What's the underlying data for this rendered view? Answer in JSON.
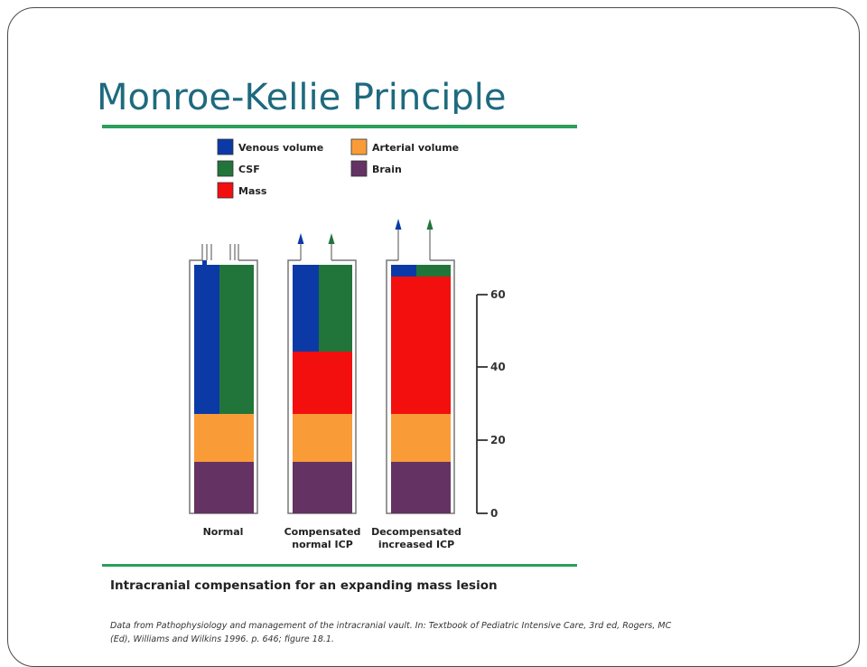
{
  "slide": {
    "title": "Monroe-Kellie Principle",
    "caption": "Intracranial compensation for an expanding mass lesion",
    "source": "Data from Pathophysiology and management of the intracranial vault. In: Textbook of Pediatric Intensive Care, 3rd ed, Rogers, MC (Ed), Williams and Wilkins 1996. p. 646; figure 18.1."
  },
  "colors": {
    "venous": "#0b3aa6",
    "csf": "#21753a",
    "mass": "#f40f0f",
    "arterial": "#f99c38",
    "brain": "#643263",
    "title": "#1e6a7e",
    "rule": "#2aa05a"
  },
  "legend": [
    {
      "key": "venous",
      "label": "Venous volume"
    },
    {
      "key": "arterial",
      "label": "Arterial volume"
    },
    {
      "key": "csf",
      "label": "CSF"
    },
    {
      "key": "brain",
      "label": "Brain"
    },
    {
      "key": "mass",
      "label": "Mass"
    }
  ],
  "scale": {
    "ticks": [
      "0",
      "20",
      "40",
      "60"
    ]
  },
  "columns": [
    {
      "name": "normal",
      "label_lines": [
        "Normal"
      ]
    },
    {
      "name": "compensated",
      "label_lines": [
        "Compensated",
        "normal ICP"
      ]
    },
    {
      "name": "decompensated",
      "label_lines": [
        "Decompensated",
        "increased ICP"
      ]
    }
  ]
}
